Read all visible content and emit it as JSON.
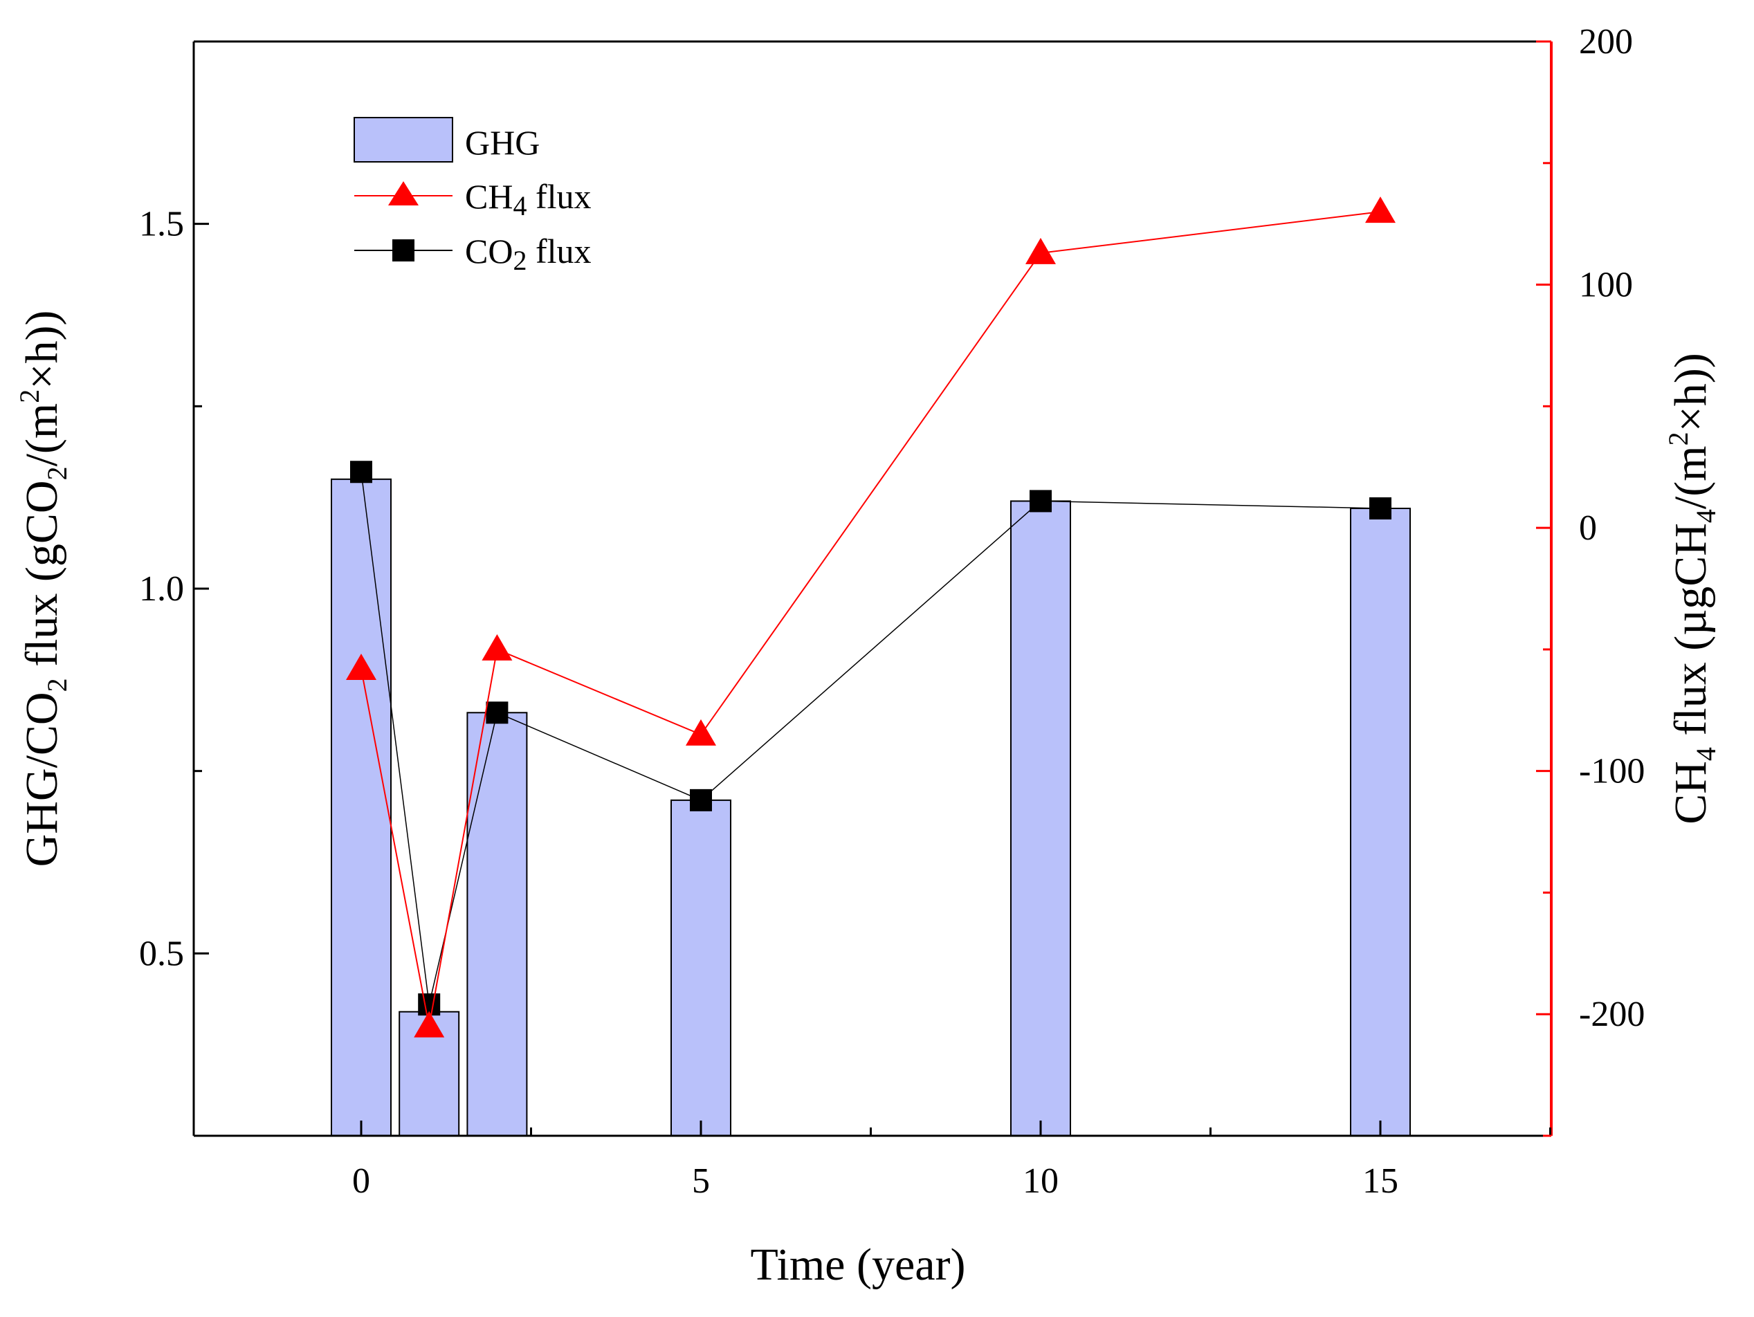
{
  "chart_data": {
    "type": "bar+line (dual y-axis)",
    "x": [
      0,
      1,
      2,
      5,
      10,
      15
    ],
    "xlabel": "Time (year)",
    "xticks": [
      "0",
      "5",
      "10",
      "15"
    ],
    "xlim": [
      -2.5,
      17.5
    ],
    "left_axis": {
      "label": {
        "a": "GHG/CO",
        "sub1": "2",
        "b": " flux  (gCO",
        "sub2": "2",
        "c": "/(m",
        "sup": "2",
        "d": "×h))"
      },
      "ylim": [
        0.25,
        1.75
      ],
      "ticks": [
        "0.5",
        "1.0",
        "1.5"
      ]
    },
    "right_axis": {
      "label": {
        "a": "CH",
        "sub1": "4",
        "b": " flux  (µgCH",
        "sub2": "4",
        "c": "/(m",
        "sup": "2",
        "d": "×h))"
      },
      "ylim": [
        -250,
        200
      ],
      "ticks": [
        "200",
        "100",
        "0",
        "-100",
        "-200"
      ],
      "color": "#ff0000"
    },
    "series": [
      {
        "name": "GHG",
        "type": "bar",
        "axis": "left",
        "color": "#b9c1fa",
        "values": [
          1.15,
          0.42,
          0.83,
          0.71,
          1.12,
          1.11
        ]
      },
      {
        "name": "CH4 flux",
        "type": "line",
        "marker": "triangle",
        "axis": "right",
        "color": "#ff0000",
        "values": [
          -58,
          -205,
          -50,
          -85,
          113,
          130
        ]
      },
      {
        "name": "CO2 flux",
        "type": "line",
        "marker": "square",
        "axis": "left",
        "color": "#000000",
        "values": [
          1.16,
          0.43,
          0.83,
          0.71,
          1.12,
          1.11
        ]
      }
    ],
    "legend": {
      "position": "top-left",
      "entries": [
        {
          "label": "GHG"
        },
        {
          "label": "CH",
          "sub": "4",
          "rest": " flux"
        },
        {
          "label": "CO",
          "sub": "2",
          "rest": " flux"
        }
      ]
    }
  }
}
